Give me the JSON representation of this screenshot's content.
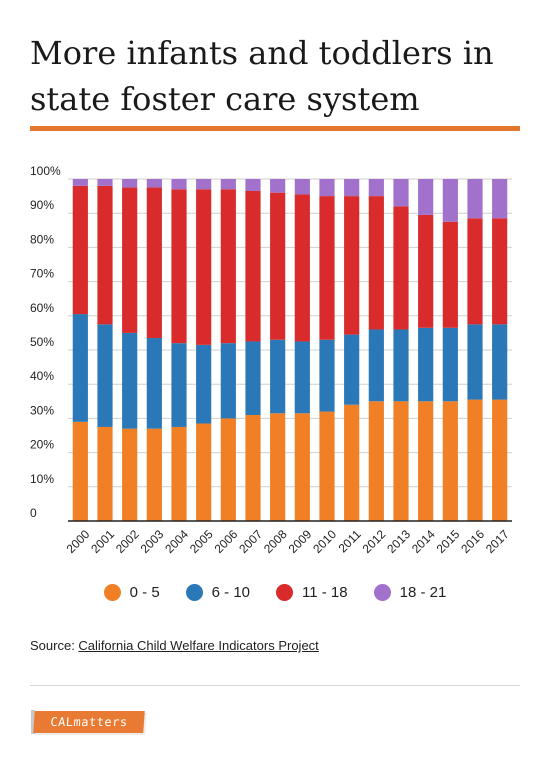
{
  "title": "More infants and toddlers in state foster care system",
  "colors": {
    "accent": "#e4772d",
    "grid": "#cfcfcf",
    "axis": "#222222"
  },
  "legend": [
    {
      "label": "0 - 5",
      "color": "#f07f26"
    },
    {
      "label": "6 - 10",
      "color": "#2a78b7"
    },
    {
      "label": "11 - 18",
      "color": "#d92b2b"
    },
    {
      "label": "18 - 21",
      "color": "#a171cc"
    }
  ],
  "source": {
    "prefix": "Source: ",
    "link_text": "California Child Welfare Indicators Project"
  },
  "logo": {
    "text": "CALmatters"
  },
  "chart_data": {
    "type": "bar",
    "stacked": true,
    "categories": [
      "2000",
      "2001",
      "2002",
      "2003",
      "2004",
      "2005",
      "2006",
      "2007",
      "2008",
      "2009",
      "2010",
      "2011",
      "2012",
      "2013",
      "2014",
      "2015",
      "2016",
      "2017"
    ],
    "y_ticks": [
      "0",
      "10%",
      "20%",
      "30%",
      "40%",
      "50%",
      "60%",
      "70%",
      "80%",
      "90%",
      "100%"
    ],
    "ylim": [
      0,
      100
    ],
    "grid": true,
    "legend_position": "bottom",
    "series": [
      {
        "name": "0 - 5",
        "color": "#f07f26",
        "values": [
          29,
          27.5,
          27,
          27,
          27.5,
          28.5,
          30,
          31,
          31.5,
          31.5,
          32,
          34,
          35,
          35,
          35,
          35,
          35.5,
          35.5
        ]
      },
      {
        "name": "6 - 10",
        "color": "#2a78b7",
        "values": [
          31.5,
          30,
          28,
          26.5,
          24.5,
          23,
          22,
          21.5,
          21.5,
          21,
          21,
          20.5,
          21,
          21,
          21.5,
          21.5,
          22,
          22
        ]
      },
      {
        "name": "11 - 18",
        "color": "#d92b2b",
        "values": [
          37.5,
          40.5,
          42.5,
          44,
          45,
          45.5,
          45,
          44,
          43,
          43,
          42,
          40.5,
          39,
          36,
          33,
          31,
          31,
          31
        ]
      },
      {
        "name": "18 - 21",
        "color": "#a171cc",
        "values": [
          2,
          2,
          2.5,
          2.5,
          3,
          3,
          3,
          3.5,
          4,
          4.5,
          5,
          5,
          5,
          8,
          10.5,
          12.5,
          11.5,
          11.5
        ]
      }
    ]
  }
}
